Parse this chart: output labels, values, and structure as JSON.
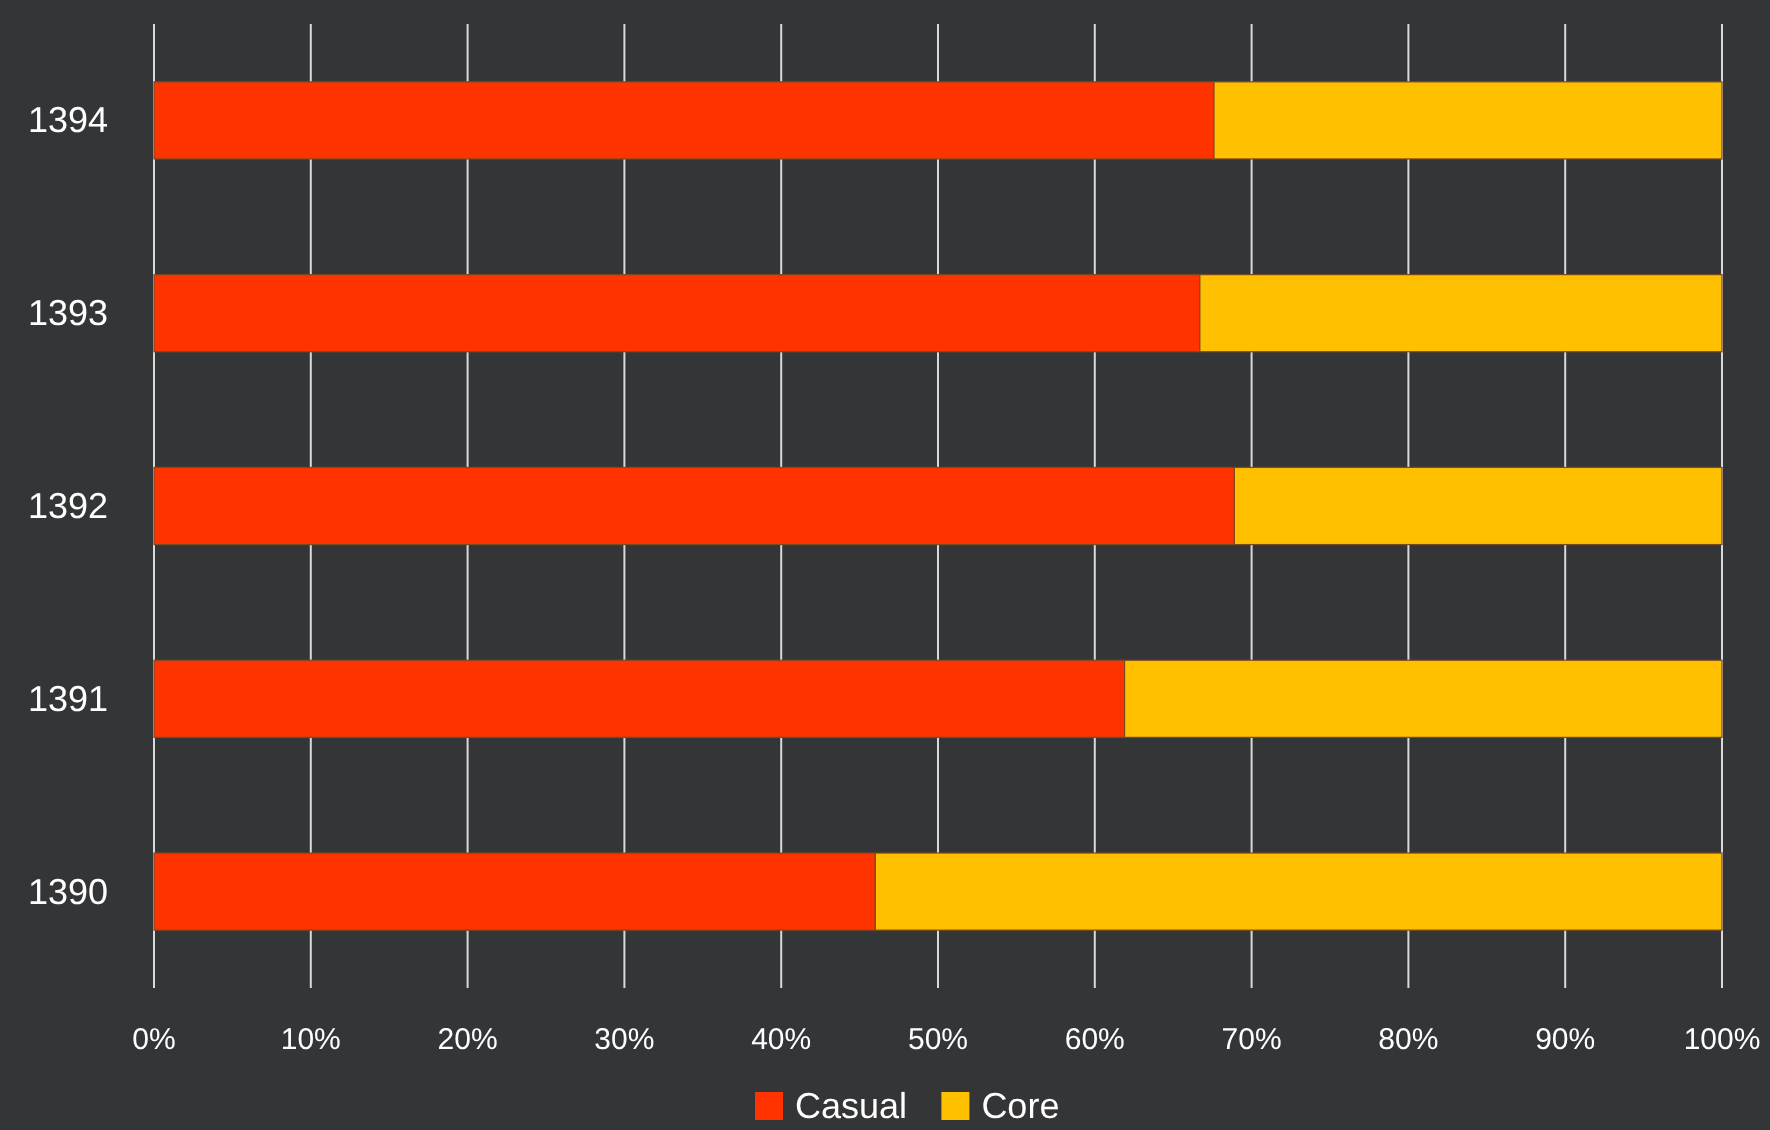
{
  "chart_data": {
    "type": "bar",
    "orientation": "horizontal",
    "stacked": true,
    "categories": [
      "1394",
      "1393",
      "1392",
      "1391",
      "1390"
    ],
    "series": [
      {
        "name": "Casual",
        "color": "#ff3300",
        "values": [
          67.6,
          66.7,
          68.9,
          61.9,
          46.0
        ]
      },
      {
        "name": "Core",
        "color": "#ffc000",
        "values": [
          32.4,
          33.3,
          31.1,
          38.1,
          54.0
        ]
      }
    ],
    "xlim": [
      0,
      100
    ],
    "xticks": [
      {
        "value": 0,
        "label": "0%"
      },
      {
        "value": 10,
        "label": "10%"
      },
      {
        "value": 20,
        "label": "20%"
      },
      {
        "value": 30,
        "label": "30%"
      },
      {
        "value": 40,
        "label": "40%"
      },
      {
        "value": 50,
        "label": "50%"
      },
      {
        "value": 60,
        "label": "60%"
      },
      {
        "value": 70,
        "label": "70%"
      },
      {
        "value": 80,
        "label": "80%"
      },
      {
        "value": 90,
        "label": "90%"
      },
      {
        "value": 100,
        "label": "100%"
      }
    ],
    "grid": "x",
    "legend": "bottom"
  }
}
